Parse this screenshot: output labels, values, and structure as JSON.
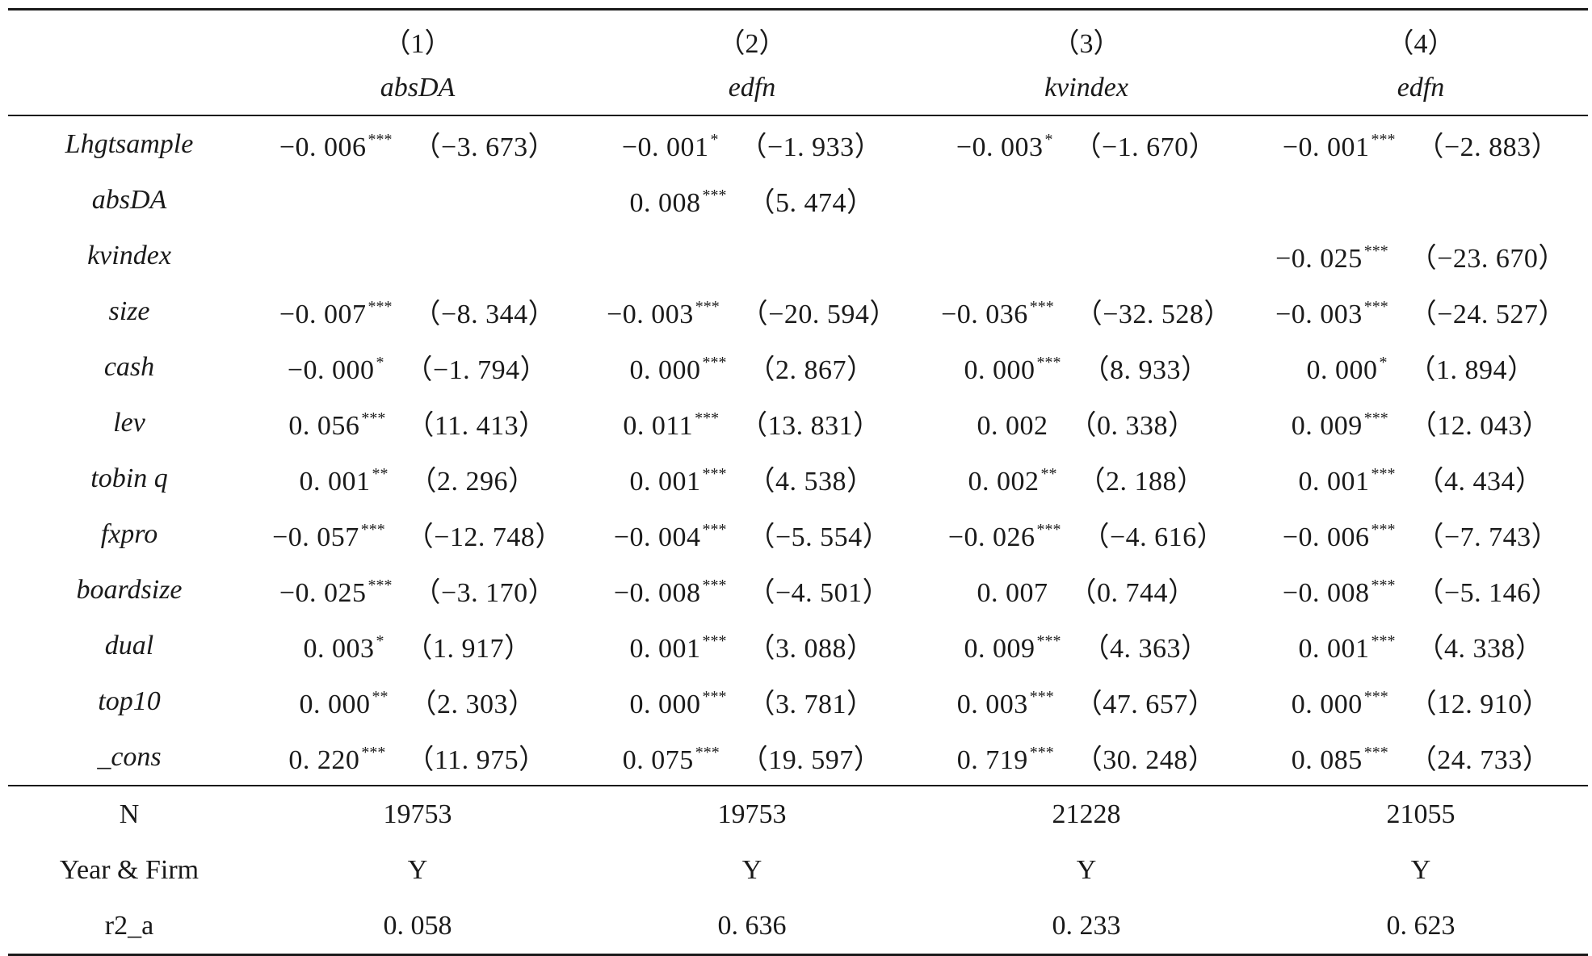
{
  "table": {
    "columns": [
      {
        "num": "（1）",
        "dv": "absDA"
      },
      {
        "num": "（2）",
        "dv": "edfn"
      },
      {
        "num": "（3）",
        "dv": "kvindex"
      },
      {
        "num": "（4）",
        "dv": "edfn"
      }
    ],
    "coef_rows": [
      {
        "var": "Lhgtsample",
        "cells": [
          {
            "coef": "−0. 006",
            "stars": "***",
            "t": "（−3. 673）"
          },
          {
            "coef": "−0. 001",
            "stars": "*",
            "t": "（−1. 933）"
          },
          {
            "coef": "−0. 003",
            "stars": "*",
            "t": "（−1. 670）"
          },
          {
            "coef": "−0. 001",
            "stars": "***",
            "t": "（−2. 883）"
          }
        ]
      },
      {
        "var": "absDA",
        "cells": [
          {
            "coef": "",
            "stars": "",
            "t": ""
          },
          {
            "coef": "0. 008",
            "stars": "***",
            "t": "（5. 474）"
          },
          {
            "coef": "",
            "stars": "",
            "t": ""
          },
          {
            "coef": "",
            "stars": "",
            "t": ""
          }
        ]
      },
      {
        "var": "kvindex",
        "cells": [
          {
            "coef": "",
            "stars": "",
            "t": ""
          },
          {
            "coef": "",
            "stars": "",
            "t": ""
          },
          {
            "coef": "",
            "stars": "",
            "t": ""
          },
          {
            "coef": "−0. 025",
            "stars": "***",
            "t": "（−23. 670）"
          }
        ]
      },
      {
        "var": "size",
        "cells": [
          {
            "coef": "−0. 007",
            "stars": "***",
            "t": "（−8. 344）"
          },
          {
            "coef": "−0. 003",
            "stars": "***",
            "t": "（−20. 594）"
          },
          {
            "coef": "−0. 036",
            "stars": "***",
            "t": "（−32. 528）"
          },
          {
            "coef": "−0. 003",
            "stars": "***",
            "t": "（−24. 527）"
          }
        ]
      },
      {
        "var": "cash",
        "cells": [
          {
            "coef": "−0. 000",
            "stars": "*",
            "t": "（−1. 794）"
          },
          {
            "coef": "0. 000",
            "stars": "***",
            "t": "（2. 867）"
          },
          {
            "coef": "0. 000",
            "stars": "***",
            "t": "（8. 933）"
          },
          {
            "coef": "0. 000",
            "stars": "*",
            "t": "（1. 894）"
          }
        ]
      },
      {
        "var": "lev",
        "cells": [
          {
            "coef": "0. 056",
            "stars": "***",
            "t": "（11. 413）"
          },
          {
            "coef": "0. 011",
            "stars": "***",
            "t": "（13. 831）"
          },
          {
            "coef": "0. 002",
            "stars": "",
            "t": "（0. 338）"
          },
          {
            "coef": "0. 009",
            "stars": "***",
            "t": "（12. 043）"
          }
        ]
      },
      {
        "var": "tobin q",
        "cells": [
          {
            "coef": "0. 001",
            "stars": "**",
            "t": "（2. 296）"
          },
          {
            "coef": "0. 001",
            "stars": "***",
            "t": "（4. 538）"
          },
          {
            "coef": "0. 002",
            "stars": "**",
            "t": "（2. 188）"
          },
          {
            "coef": "0. 001",
            "stars": "***",
            "t": "（4. 434）"
          }
        ]
      },
      {
        "var": "fxpro",
        "cells": [
          {
            "coef": "−0. 057",
            "stars": "***",
            "t": "（−12. 748）"
          },
          {
            "coef": "−0. 004",
            "stars": "***",
            "t": "（−5. 554）"
          },
          {
            "coef": "−0. 026",
            "stars": "***",
            "t": "（−4. 616）"
          },
          {
            "coef": "−0. 006",
            "stars": "***",
            "t": "（−7. 743）"
          }
        ]
      },
      {
        "var": "boardsize",
        "cells": [
          {
            "coef": "−0. 025",
            "stars": "***",
            "t": "（−3. 170）"
          },
          {
            "coef": "−0. 008",
            "stars": "***",
            "t": "（−4. 501）"
          },
          {
            "coef": "0. 007",
            "stars": "",
            "t": "（0. 744）"
          },
          {
            "coef": "−0. 008",
            "stars": "***",
            "t": "（−5. 146）"
          }
        ]
      },
      {
        "var": "dual",
        "cells": [
          {
            "coef": "0. 003",
            "stars": "*",
            "t": "（1. 917）"
          },
          {
            "coef": "0. 001",
            "stars": "***",
            "t": "（3. 088）"
          },
          {
            "coef": "0. 009",
            "stars": "***",
            "t": "（4. 363）"
          },
          {
            "coef": "0. 001",
            "stars": "***",
            "t": "（4. 338）"
          }
        ]
      },
      {
        "var": "top10",
        "cells": [
          {
            "coef": "0. 000",
            "stars": "**",
            "t": "（2. 303）"
          },
          {
            "coef": "0. 000",
            "stars": "***",
            "t": "（3. 781）"
          },
          {
            "coef": "0. 003",
            "stars": "***",
            "t": "（47. 657）"
          },
          {
            "coef": "0. 000",
            "stars": "***",
            "t": "（12. 910）"
          }
        ]
      },
      {
        "var": "_cons",
        "cells": [
          {
            "coef": "0. 220",
            "stars": "***",
            "t": "（11. 975）"
          },
          {
            "coef": "0. 075",
            "stars": "***",
            "t": "（19. 597）"
          },
          {
            "coef": "0. 719",
            "stars": "***",
            "t": "（30. 248）"
          },
          {
            "coef": "0. 085",
            "stars": "***",
            "t": "（24. 733）"
          }
        ]
      }
    ],
    "stat_rows": [
      {
        "label": "N",
        "values": [
          "19753",
          "19753",
          "21228",
          "21055"
        ]
      },
      {
        "label": "Year & Firm",
        "values": [
          "Y",
          "Y",
          "Y",
          "Y"
        ]
      },
      {
        "label": "r2_a",
        "values": [
          "0. 058",
          "0. 636",
          "0. 233",
          "0. 623"
        ]
      }
    ]
  }
}
